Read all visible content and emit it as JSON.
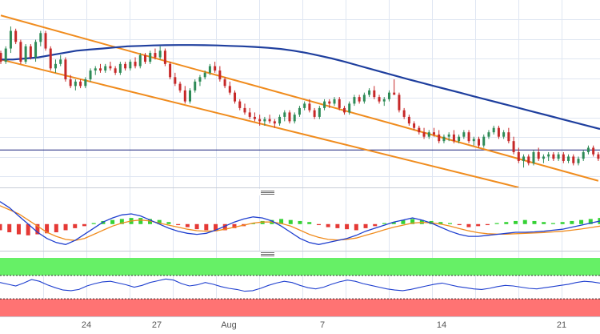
{
  "chart_data": [
    {
      "type": "candlestick",
      "panel": "price",
      "x_labels": [
        "24",
        "27",
        "Aug",
        "7",
        "14",
        "21"
      ],
      "colors": {
        "up": "#2e8b57",
        "down": "#c62828",
        "sma": "#1f3f9e",
        "channel": "#f08c1e",
        "hline": "#1a237e",
        "grid": "#dfe6f2"
      },
      "candles_ohlc": [
        [
          0.2,
          0.3,
          -0.3,
          -0.2
        ],
        [
          -0.2,
          0.5,
          -0.3,
          0.4
        ],
        [
          0.4,
          1.4,
          0.2,
          1.2
        ],
        [
          1.2,
          1.3,
          0.6,
          0.7
        ],
        [
          0.7,
          0.8,
          -0.3,
          -0.2
        ],
        [
          -0.2,
          0.6,
          -0.3,
          0.5
        ],
        [
          0.5,
          0.6,
          -0.1,
          0.0
        ],
        [
          0.0,
          0.8,
          -0.2,
          0.7
        ],
        [
          0.7,
          1.2,
          0.5,
          1.1
        ],
        [
          1.1,
          1.2,
          0.3,
          0.4
        ],
        [
          0.4,
          0.5,
          -0.6,
          -0.5
        ],
        [
          -0.5,
          -0.1,
          -0.7,
          -0.3
        ],
        [
          -0.3,
          0.1,
          -0.4,
          -0.1
        ],
        [
          -0.1,
          0.0,
          -1.1,
          -1.0
        ],
        [
          -1.0,
          -0.8,
          -1.4,
          -1.3
        ],
        [
          -1.3,
          -1.0,
          -1.5,
          -1.1
        ],
        [
          -1.1,
          -1.0,
          -1.4,
          -1.3
        ],
        [
          -1.3,
          -0.9,
          -1.4,
          -1.0
        ],
        [
          -1.0,
          -0.5,
          -1.1,
          -0.6
        ],
        [
          -0.6,
          -0.4,
          -0.8,
          -0.5
        ],
        [
          -0.5,
          -0.3,
          -0.7,
          -0.6
        ],
        [
          -0.6,
          -0.3,
          -0.7,
          -0.4
        ],
        [
          -0.4,
          -0.2,
          -0.6,
          -0.5
        ],
        [
          -0.5,
          -0.4,
          -0.8,
          -0.7
        ],
        [
          -0.7,
          -0.2,
          -0.8,
          -0.3
        ],
        [
          -0.3,
          -0.2,
          -0.6,
          -0.5
        ],
        [
          -0.5,
          -0.1,
          -0.6,
          -0.2
        ],
        [
          -0.2,
          0.0,
          -0.5,
          -0.4
        ],
        [
          -0.4,
          0.2,
          -0.5,
          0.1
        ],
        [
          0.1,
          0.2,
          -0.3,
          -0.2
        ],
        [
          -0.2,
          0.3,
          -0.3,
          0.2
        ],
        [
          0.2,
          0.4,
          -0.1,
          0.0
        ],
        [
          0.0,
          0.5,
          -0.1,
          0.3
        ],
        [
          0.3,
          0.4,
          -0.4,
          -0.3
        ],
        [
          -0.3,
          -0.2,
          -1.0,
          -0.9
        ],
        [
          -0.9,
          -0.7,
          -1.3,
          -1.2
        ],
        [
          -1.2,
          -1.1,
          -1.6,
          -1.5
        ],
        [
          -1.5,
          -1.3,
          -2.1,
          -2.0
        ],
        [
          -2.0,
          -1.4,
          -2.1,
          -1.5
        ],
        [
          -1.5,
          -1.0,
          -1.6,
          -1.1
        ],
        [
          -1.1,
          -0.8,
          -1.3,
          -0.9
        ],
        [
          -0.9,
          -0.6,
          -1.0,
          -0.7
        ],
        [
          -0.7,
          -0.3,
          -0.8,
          -0.4
        ],
        [
          -0.4,
          -0.2,
          -0.7,
          -0.6
        ],
        [
          -0.6,
          -0.4,
          -1.1,
          -1.0
        ],
        [
          -1.0,
          -0.9,
          -1.4,
          -1.3
        ],
        [
          -1.3,
          -1.1,
          -1.7,
          -1.6
        ],
        [
          -1.6,
          -1.5,
          -2.1,
          -2.0
        ],
        [
          -2.0,
          -1.9,
          -2.4,
          -2.3
        ],
        [
          -2.3,
          -2.1,
          -2.6,
          -2.5
        ],
        [
          -2.5,
          -2.3,
          -2.8,
          -2.7
        ],
        [
          -2.7,
          -2.5,
          -2.9,
          -2.8
        ],
        [
          -2.8,
          -2.6,
          -3.1,
          -2.9
        ],
        [
          -2.9,
          -2.7,
          -3.1,
          -2.8
        ],
        [
          -2.8,
          -2.6,
          -3.0,
          -2.9
        ],
        [
          -2.9,
          -2.8,
          -3.2,
          -3.0
        ],
        [
          -3.0,
          -2.6,
          -3.1,
          -2.7
        ],
        [
          -2.7,
          -2.4,
          -2.9,
          -2.5
        ],
        [
          -2.5,
          -2.4,
          -3.0,
          -2.9
        ],
        [
          -2.9,
          -2.5,
          -3.0,
          -2.6
        ],
        [
          -2.6,
          -2.2,
          -2.7,
          -2.3
        ],
        [
          -2.3,
          -2.0,
          -2.4,
          -2.1
        ],
        [
          -2.1,
          -1.9,
          -2.5,
          -2.4
        ],
        [
          -2.4,
          -2.3,
          -2.8,
          -2.7
        ],
        [
          -2.7,
          -2.2,
          -2.8,
          -2.3
        ],
        [
          -2.3,
          -1.9,
          -2.4,
          -2.0
        ],
        [
          -2.0,
          -1.9,
          -2.3,
          -2.1
        ],
        [
          -2.1,
          -1.8,
          -2.2,
          -1.9
        ],
        [
          -1.9,
          -1.8,
          -2.4,
          -2.3
        ],
        [
          -2.3,
          -2.2,
          -2.6,
          -2.5
        ],
        [
          -2.5,
          -2.0,
          -2.6,
          -2.1
        ],
        [
          -2.1,
          -1.7,
          -2.2,
          -1.8
        ],
        [
          -1.8,
          -1.7,
          -2.1,
          -2.0
        ],
        [
          -2.0,
          -1.6,
          -2.1,
          -1.7
        ],
        [
          -1.7,
          -1.4,
          -1.8,
          -1.5
        ],
        [
          -1.5,
          -1.3,
          -1.9,
          -1.8
        ],
        [
          -1.8,
          -1.7,
          -2.1,
          -2.0
        ],
        [
          -2.0,
          -1.8,
          -2.2,
          -1.9
        ],
        [
          -1.9,
          -1.5,
          -2.0,
          -1.6
        ],
        [
          -1.6,
          -1.0,
          -1.7,
          -1.7
        ],
        [
          -1.7,
          -1.6,
          -2.5,
          -2.4
        ],
        [
          -2.4,
          -2.3,
          -2.8,
          -2.7
        ],
        [
          -2.7,
          -2.6,
          -3.1,
          -3.0
        ],
        [
          -3.0,
          -2.9,
          -3.3,
          -3.2
        ],
        [
          -3.2,
          -3.1,
          -3.5,
          -3.4
        ],
        [
          -3.4,
          -3.2,
          -3.7,
          -3.6
        ],
        [
          -3.6,
          -3.3,
          -3.7,
          -3.4
        ],
        [
          -3.4,
          -3.2,
          -3.6,
          -3.5
        ],
        [
          -3.5,
          -3.3,
          -3.9,
          -3.8
        ],
        [
          -3.8,
          -3.5,
          -3.9,
          -3.6
        ],
        [
          -3.6,
          -3.4,
          -3.8,
          -3.5
        ],
        [
          -3.5,
          -3.3,
          -3.9,
          -3.8
        ],
        [
          -3.8,
          -3.5,
          -3.9,
          -3.6
        ],
        [
          -3.6,
          -3.3,
          -3.7,
          -3.4
        ],
        [
          -3.4,
          -3.3,
          -3.9,
          -3.8
        ],
        [
          -3.8,
          -3.6,
          -4.0,
          -3.7
        ],
        [
          -3.7,
          -3.6,
          -4.1,
          -4.0
        ],
        [
          -4.0,
          -3.5,
          -4.1,
          -3.6
        ],
        [
          -3.6,
          -3.3,
          -3.7,
          -3.4
        ],
        [
          -3.4,
          -3.1,
          -3.5,
          -3.2
        ],
        [
          -3.2,
          -3.1,
          -3.7,
          -3.6
        ],
        [
          -3.6,
          -3.3,
          -3.7,
          -3.4
        ],
        [
          -3.4,
          -3.2,
          -3.9,
          -3.8
        ],
        [
          -3.8,
          -3.6,
          -4.4,
          -4.3
        ],
        [
          -4.3,
          -4.1,
          -4.8,
          -4.7
        ],
        [
          -4.7,
          -4.4,
          -5.0,
          -4.5
        ],
        [
          -4.5,
          -4.4,
          -4.9,
          -4.8
        ],
        [
          -4.8,
          -4.2,
          -4.9,
          -4.3
        ],
        [
          -4.3,
          -4.1,
          -4.7,
          -4.6
        ],
        [
          -4.6,
          -4.4,
          -4.8,
          -4.5
        ],
        [
          -4.5,
          -4.3,
          -4.7,
          -4.4
        ],
        [
          -4.4,
          -4.3,
          -4.7,
          -4.6
        ],
        [
          -4.6,
          -4.3,
          -4.7,
          -4.4
        ],
        [
          -4.4,
          -4.3,
          -4.8,
          -4.7
        ],
        [
          -4.7,
          -4.4,
          -4.8,
          -4.5
        ],
        [
          -4.5,
          -4.4,
          -4.9,
          -4.8
        ],
        [
          -4.8,
          -4.5,
          -4.9,
          -4.6
        ],
        [
          -4.6,
          -4.2,
          -4.7,
          -4.3
        ],
        [
          -4.3,
          -4.0,
          -4.4,
          -4.1
        ],
        [
          -4.1,
          -4.0,
          -4.5,
          -4.4
        ],
        [
          -4.4,
          -4.3,
          -4.7,
          -4.6
        ]
      ],
      "sma": [
        -0.1,
        -0.1,
        -0.05,
        0.0,
        0.1,
        0.2,
        0.3,
        0.35,
        0.4,
        0.45,
        0.5,
        0.52,
        0.54,
        0.55,
        0.56,
        0.56,
        0.55,
        0.54,
        0.52,
        0.5,
        0.47,
        0.43,
        0.38,
        0.3,
        0.2,
        0.08,
        -0.05,
        -0.2,
        -0.36,
        -0.52,
        -0.68,
        -0.84,
        -1.0,
        -1.15,
        -1.3,
        -1.45,
        -1.6,
        -1.75,
        -1.9,
        -2.05,
        -2.2,
        -2.35,
        -2.5,
        -2.65,
        -2.8,
        -2.95,
        -3.1,
        -3.25
      ],
      "channel_upper": [
        [
          0,
          1.9
        ],
        [
          120,
          -5.6
        ]
      ],
      "channel_lower": [
        [
          0,
          -0.1
        ],
        [
          104,
          -5.9
        ]
      ],
      "hline": -4.2,
      "ylim": [
        -5.9,
        2.6
      ]
    },
    {
      "type": "histogram_lines",
      "panel": "macd",
      "colors": {
        "hist_up": "#35d235",
        "hist_down": "#e53935",
        "macd": "#1f3fcf",
        "signal": "#f08c1e"
      },
      "histogram": [
        -0.3,
        -0.4,
        -0.5,
        -0.55,
        -0.5,
        -0.45,
        -0.4,
        -0.3,
        -0.2,
        -0.1,
        0.05,
        0.15,
        0.2,
        0.25,
        0.3,
        0.3,
        0.25,
        0.2,
        0.1,
        -0.05,
        -0.15,
        -0.25,
        -0.3,
        -0.35,
        -0.3,
        -0.2,
        -0.1,
        0.05,
        0.15,
        0.2,
        0.25,
        0.2,
        0.15,
        0.1,
        -0.05,
        -0.15,
        -0.2,
        -0.25,
        -0.3,
        -0.2,
        -0.1,
        0.05,
        0.1,
        0.2,
        0.25,
        0.2,
        0.15,
        0.1,
        0.05,
        -0.05,
        -0.15,
        -0.1,
        -0.05,
        0.05,
        0.1,
        0.15,
        0.2,
        0.15,
        0.1,
        0.05,
        0.1,
        0.15,
        0.2,
        0.25,
        0.3
      ],
      "macd": [
        1.1,
        0.8,
        0.4,
        0.0,
        -0.4,
        -0.7,
        -0.9,
        -1.0,
        -0.8,
        -0.5,
        -0.2,
        0.1,
        0.3,
        0.45,
        0.5,
        0.4,
        0.2,
        0.0,
        -0.2,
        -0.35,
        -0.45,
        -0.5,
        -0.45,
        -0.3,
        -0.1,
        0.1,
        0.25,
        0.35,
        0.3,
        0.15,
        -0.1,
        -0.4,
        -0.7,
        -0.9,
        -1.0,
        -0.9,
        -0.8,
        -0.7,
        -0.55,
        -0.35,
        -0.2,
        -0.05,
        0.1,
        0.2,
        0.3,
        0.2,
        0.05,
        -0.15,
        -0.35,
        -0.5,
        -0.6,
        -0.6,
        -0.55,
        -0.5,
        -0.45,
        -0.4,
        -0.4,
        -0.38,
        -0.35,
        -0.3,
        -0.25,
        -0.15,
        -0.05,
        0.05,
        0.15
      ],
      "signal": [
        0.9,
        0.7,
        0.5,
        0.2,
        -0.1,
        -0.4,
        -0.6,
        -0.75,
        -0.8,
        -0.7,
        -0.5,
        -0.3,
        -0.1,
        0.05,
        0.15,
        0.2,
        0.15,
        0.05,
        -0.05,
        -0.15,
        -0.25,
        -0.32,
        -0.35,
        -0.33,
        -0.25,
        -0.15,
        -0.05,
        0.05,
        0.1,
        0.1,
        0.03,
        -0.1,
        -0.3,
        -0.5,
        -0.65,
        -0.75,
        -0.78,
        -0.75,
        -0.68,
        -0.55,
        -0.42,
        -0.28,
        -0.15,
        -0.05,
        0.05,
        0.08,
        0.06,
        0.0,
        -0.1,
        -0.22,
        -0.33,
        -0.42,
        -0.47,
        -0.49,
        -0.49,
        -0.47,
        -0.45,
        -0.43,
        -0.41,
        -0.38,
        -0.35,
        -0.3,
        -0.24,
        -0.17,
        -0.1
      ],
      "ylim": [
        -1.3,
        1.4
      ]
    },
    {
      "type": "line",
      "panel": "rsi",
      "colors": {
        "line": "#1f3fcf",
        "overbought_zone": "#66f066",
        "oversold_zone": "#ff7373"
      },
      "values": [
        58,
        55,
        52,
        57,
        63,
        60,
        54,
        49,
        45,
        44,
        46,
        52,
        56,
        59,
        60,
        57,
        54,
        50,
        53,
        58,
        61,
        64,
        62,
        56,
        52,
        54,
        58,
        55,
        51,
        48,
        46,
        43,
        44,
        48,
        53,
        57,
        60,
        58,
        53,
        49,
        47,
        50,
        55,
        59,
        62,
        60,
        56,
        53,
        50,
        47,
        45,
        44,
        46,
        49,
        52,
        55,
        57,
        54,
        51,
        49,
        47,
        46,
        48,
        51,
        53,
        52,
        50,
        48,
        47,
        49,
        51,
        53,
        55,
        58,
        60,
        59,
        57
      ],
      "ylim": [
        0,
        100
      ]
    }
  ]
}
